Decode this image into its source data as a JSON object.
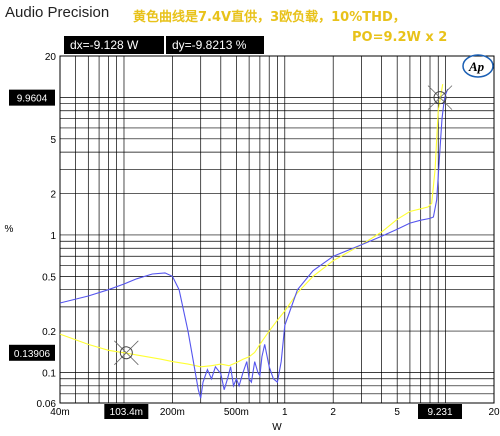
{
  "app": {
    "title": "Audio Precision"
  },
  "annotations": {
    "line1": "黄色曲线是7.4V直供，3欧负载，10%THD，",
    "line2": "PO=9.2W x 2"
  },
  "readouts": {
    "dx": "dx=-9.128  W",
    "dy": "dy=-9.8213  %"
  },
  "logo": {
    "text": "Ap",
    "color": "#1a5fb4"
  },
  "chart_data": {
    "type": "line",
    "title": "",
    "xlabel": "W",
    "ylabel": "%",
    "xscale": "log",
    "yscale": "log",
    "xlim": [
      0.04,
      20
    ],
    "ylim": [
      0.06,
      20
    ],
    "grid": true,
    "x_ticks": [
      {
        "v": 0.04,
        "label": "40m"
      },
      {
        "v": 0.2,
        "label": "200m"
      },
      {
        "v": 0.5,
        "label": "500m"
      },
      {
        "v": 1,
        "label": "1"
      },
      {
        "v": 2,
        "label": "2"
      },
      {
        "v": 5,
        "label": "5"
      },
      {
        "v": 20,
        "label": "20"
      }
    ],
    "y_ticks": [
      {
        "v": 20,
        "label": "20"
      },
      {
        "v": 5,
        "label": "5"
      },
      {
        "v": 2,
        "label": "2"
      },
      {
        "v": 1,
        "label": "1"
      },
      {
        "v": 0.5,
        "label": "0.5"
      },
      {
        "v": 0.2,
        "label": "0.2"
      },
      {
        "v": 0.1,
        "label": "0.1"
      },
      {
        "v": 0.06,
        "label": "0.06"
      }
    ],
    "cursors": [
      {
        "x": 0.1034,
        "y": 0.13906,
        "x_label": "103.4m",
        "y_label": "0.13906"
      },
      {
        "x": 9.231,
        "y": 9.9604,
        "x_label": "9.231",
        "y_label": "9.9604"
      }
    ],
    "series": [
      {
        "color": "#ffff33",
        "x": [
          0.04,
          0.06,
          0.08,
          0.1,
          0.13,
          0.17,
          0.2,
          0.25,
          0.3,
          0.35,
          0.4,
          0.45,
          0.5,
          0.55,
          0.6,
          0.65,
          0.7,
          0.75,
          0.8,
          0.9,
          1.0,
          1.2,
          1.5,
          2.0,
          3.0,
          4.0,
          5.0,
          6.0,
          7.0,
          7.8,
          8.2,
          8.6,
          9.0,
          9.3,
          9.6
        ],
        "y": [
          0.19,
          0.16,
          0.145,
          0.139,
          0.132,
          0.125,
          0.12,
          0.115,
          0.11,
          0.112,
          0.115,
          0.112,
          0.118,
          0.125,
          0.13,
          0.14,
          0.16,
          0.18,
          0.2,
          0.24,
          0.28,
          0.38,
          0.5,
          0.65,
          0.85,
          1.05,
          1.3,
          1.48,
          1.55,
          1.6,
          1.7,
          3.0,
          8.0,
          10.0,
          12.5
        ]
      },
      {
        "color": "#5555ee",
        "x": [
          0.04,
          0.06,
          0.08,
          0.1,
          0.12,
          0.15,
          0.18,
          0.2,
          0.22,
          0.25,
          0.27,
          0.29,
          0.3,
          0.31,
          0.33,
          0.35,
          0.37,
          0.4,
          0.42,
          0.44,
          0.46,
          0.48,
          0.5,
          0.52,
          0.55,
          0.58,
          0.6,
          0.62,
          0.65,
          0.68,
          0.7,
          0.72,
          0.75,
          0.8,
          0.85,
          0.9,
          0.95,
          1.0,
          1.2,
          1.5,
          2.0,
          3.0,
          4.0,
          5.0,
          6.0,
          7.0,
          8.0,
          8.4,
          8.8,
          9.2,
          9.5,
          9.8,
          10.0,
          10.3
        ],
        "y": [
          0.32,
          0.36,
          0.4,
          0.44,
          0.48,
          0.52,
          0.53,
          0.5,
          0.4,
          0.2,
          0.12,
          0.075,
          0.065,
          0.085,
          0.105,
          0.09,
          0.11,
          0.098,
          0.075,
          0.09,
          0.11,
          0.08,
          0.09,
          0.08,
          0.1,
          0.12,
          0.09,
          0.085,
          0.12,
          0.1,
          0.095,
          0.13,
          0.16,
          0.11,
          0.09,
          0.085,
          0.12,
          0.22,
          0.4,
          0.55,
          0.7,
          0.85,
          0.98,
          1.1,
          1.22,
          1.28,
          1.32,
          1.35,
          1.8,
          4.0,
          7.0,
          9.5,
          10.5,
          11.5
        ]
      }
    ]
  }
}
